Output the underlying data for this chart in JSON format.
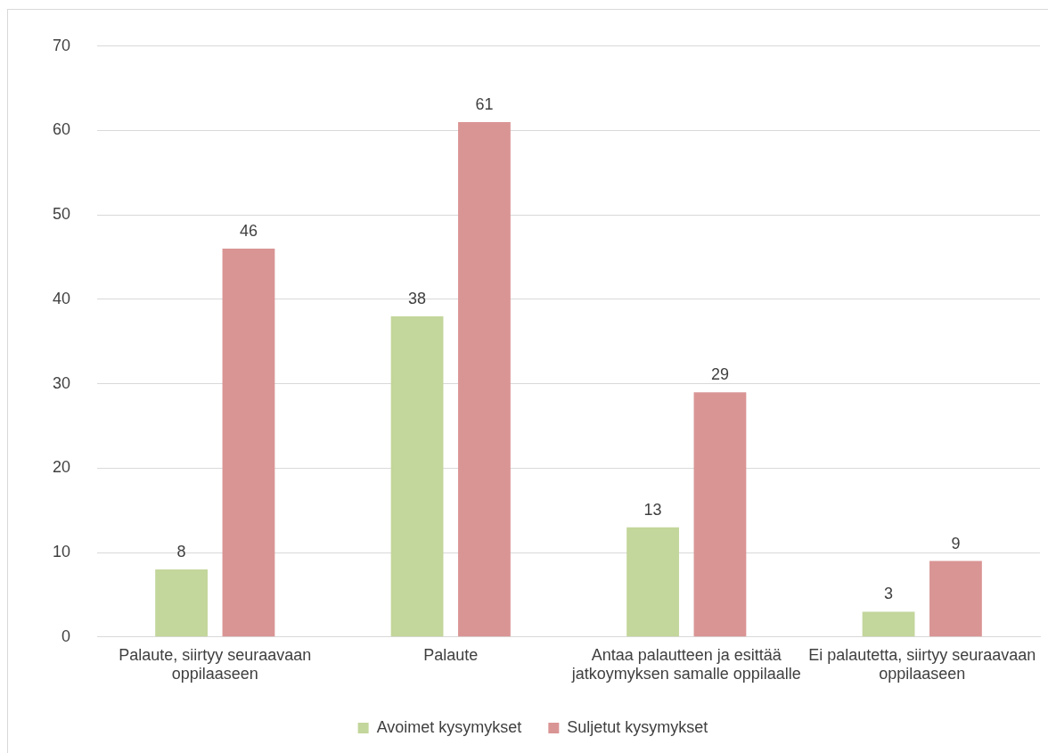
{
  "chart_data": {
    "type": "bar",
    "categories": [
      "Palaute, siirtyy seuraavaan oppilaaseen",
      "Palaute",
      "Antaa palautteen ja esittää jatkoymyksen samalle oppilaalle",
      "Ei palautetta, siirtyy seuraavaan oppilaaseen"
    ],
    "series": [
      {
        "name": "Avoimet kysymykset",
        "color": "#c3d69b",
        "values": [
          8,
          38,
          13,
          3
        ]
      },
      {
        "name": "Suljetut kysymykset",
        "color": "#d99594",
        "values": [
          46,
          61,
          29,
          9
        ]
      }
    ],
    "ylim": [
      0,
      70
    ],
    "yticks": [
      0,
      10,
      20,
      30,
      40,
      50,
      60,
      70
    ],
    "grid": "y",
    "legend": "bottom",
    "data_labels": true
  }
}
